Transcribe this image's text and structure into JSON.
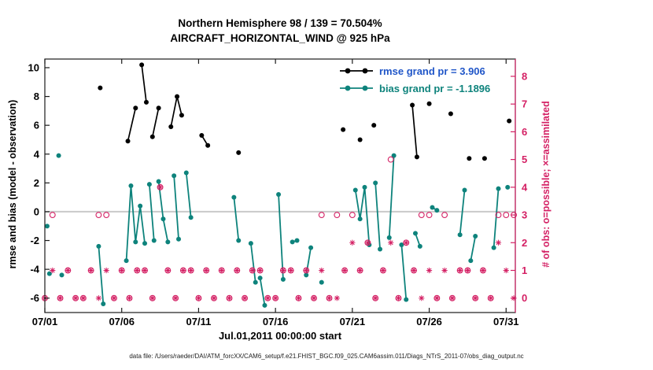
{
  "figure": {
    "title_line1": "Northern Hemisphere 98 / 139 = 70.504%",
    "title_line2": "AIRCRAFT_HORIZONTAL_WIND @ 925 hPa",
    "xlabel": "Jul.01,2011 00:00:00 start",
    "ylabel_left": "rmse and bias (model - observation)",
    "ylabel_right": "# of obs: o=possible; ×=assimilated",
    "caption": "data file: /Users/raeder/DAI/ATM_forcXX/CAM6_setup/f.e21.FHIST_BGC.f09_025.CAM6assim.011/Diags_NTrS_2011-07/obs_diag_output.nc"
  },
  "legend": {
    "rmse_label": "rmse grand pr = 3.906",
    "bias_label": "bias grand pr = -1.1896"
  },
  "colors": {
    "pink": "#d42064",
    "teal": "#0e837c",
    "black": "#000000",
    "legend_blue": "#2056c8",
    "zero_line": "#c9c9c9",
    "box": "#1a1a1a"
  },
  "chart_data": {
    "type": "line",
    "title": "Northern Hemisphere 98 / 139 = 70.504% | AIRCRAFT_HORIZONTAL_WIND @ 925 hPa",
    "rmse_grand_prior": 3.906,
    "bias_grand_prior": -1.1896,
    "x_domain": [
      0,
      30.6
    ],
    "x_ticks": [
      {
        "day": 0,
        "label": "07/01"
      },
      {
        "day": 5,
        "label": "07/06"
      },
      {
        "day": 10,
        "label": "07/11"
      },
      {
        "day": 15,
        "label": "07/16"
      },
      {
        "day": 20,
        "label": "07/21"
      },
      {
        "day": 25,
        "label": "07/26"
      },
      {
        "day": 30,
        "label": "07/31"
      }
    ],
    "ylim_left": [
      -7,
      10.6
    ],
    "yticks_left": [
      -6,
      -4,
      -2,
      0,
      2,
      4,
      6,
      8,
      10
    ],
    "right_axis": {
      "ticks": [
        0,
        1,
        2,
        3,
        4,
        5,
        6,
        7,
        8
      ],
      "zero_at_left": -6.0,
      "left_units_per_count": 1.925
    },
    "rmse_segments": [
      [
        [
          3.6,
          8.6
        ]
      ],
      [
        [
          5.4,
          4.9
        ],
        [
          5.9,
          7.2
        ]
      ],
      [
        [
          6.3,
          10.2
        ],
        [
          6.6,
          7.6
        ]
      ],
      [
        [
          7.0,
          5.2
        ],
        [
          7.4,
          7.2
        ]
      ],
      [
        [
          8.2,
          5.9
        ],
        [
          8.6,
          8.0
        ],
        [
          8.9,
          6.7
        ]
      ],
      [
        [
          10.2,
          5.3
        ],
        [
          10.6,
          4.6
        ]
      ],
      [
        [
          12.6,
          4.1
        ]
      ],
      [
        [
          19.4,
          5.7
        ]
      ],
      [
        [
          20.5,
          5.0
        ]
      ],
      [
        [
          21.4,
          6.0
        ]
      ],
      [
        [
          23.9,
          7.4
        ],
        [
          24.2,
          3.8
        ]
      ],
      [
        [
          25.0,
          7.5
        ]
      ],
      [
        [
          26.4,
          6.8
        ]
      ],
      [
        [
          27.6,
          3.7
        ]
      ],
      [
        [
          28.6,
          3.7
        ]
      ],
      [
        [
          30.2,
          6.3
        ]
      ]
    ],
    "bias_segments": [
      [
        [
          0.15,
          -1.0
        ]
      ],
      [
        [
          0.3,
          -4.3
        ]
      ],
      [
        [
          0.9,
          3.9
        ]
      ],
      [
        [
          1.1,
          -4.4
        ]
      ],
      [
        [
          3.5,
          -2.4
        ],
        [
          3.8,
          -6.4
        ]
      ],
      [
        [
          5.3,
          -3.4
        ],
        [
          5.6,
          1.8
        ],
        [
          5.9,
          -2.1
        ],
        [
          6.2,
          0.4
        ],
        [
          6.5,
          -2.2
        ]
      ],
      [
        [
          6.8,
          1.9
        ],
        [
          7.1,
          -2.0
        ]
      ],
      [
        [
          7.4,
          2.1
        ],
        [
          7.7,
          -0.5
        ],
        [
          8.0,
          -2.1
        ]
      ],
      [
        [
          8.4,
          2.5
        ],
        [
          8.7,
          -1.9
        ]
      ],
      [
        [
          9.2,
          2.7
        ],
        [
          9.5,
          -0.4
        ]
      ],
      [
        [
          12.3,
          1.0
        ],
        [
          12.6,
          -2.0
        ]
      ],
      [
        [
          13.4,
          -2.2
        ],
        [
          13.7,
          -4.9
        ]
      ],
      [
        [
          14.0,
          -4.6
        ],
        [
          14.3,
          -6.5
        ]
      ],
      [
        [
          15.2,
          1.2
        ],
        [
          15.5,
          -4.7
        ]
      ],
      [
        [
          16.1,
          -2.1
        ],
        [
          16.4,
          -2.0
        ]
      ],
      [
        [
          17.0,
          -4.4
        ],
        [
          17.3,
          -2.5
        ]
      ],
      [
        [
          18.0,
          -4.9
        ]
      ],
      [
        [
          20.2,
          1.5
        ],
        [
          20.5,
          -0.5
        ],
        [
          20.8,
          1.7
        ],
        [
          21.1,
          -2.3
        ]
      ],
      [
        [
          21.5,
          2.0
        ],
        [
          21.8,
          -2.6
        ]
      ],
      [
        [
          22.4,
          -1.8
        ],
        [
          22.7,
          3.9
        ]
      ],
      [
        [
          23.2,
          -2.3
        ],
        [
          23.5,
          -6.1
        ]
      ],
      [
        [
          24.1,
          -1.5
        ],
        [
          24.4,
          -2.4
        ]
      ],
      [
        [
          25.2,
          0.3
        ],
        [
          25.5,
          0.1
        ]
      ],
      [
        [
          27.0,
          -1.6
        ],
        [
          27.3,
          1.5
        ]
      ],
      [
        [
          27.7,
          -3.4
        ],
        [
          28.0,
          -1.7
        ]
      ],
      [
        [
          29.2,
          -2.5
        ],
        [
          29.5,
          1.6
        ]
      ],
      [
        [
          30.1,
          1.7
        ]
      ]
    ],
    "possible_counts": [
      [
        0,
        0
      ],
      [
        0.5,
        3
      ],
      [
        1,
        0
      ],
      [
        1.5,
        1
      ],
      [
        2,
        0
      ],
      [
        2.5,
        0
      ],
      [
        3,
        1
      ],
      [
        3.5,
        3
      ],
      [
        4,
        3
      ],
      [
        4.5,
        0
      ],
      [
        5,
        1
      ],
      [
        5.5,
        0
      ],
      [
        6,
        1
      ],
      [
        6.5,
        1
      ],
      [
        7,
        0
      ],
      [
        7.5,
        4
      ],
      [
        8,
        1
      ],
      [
        8.5,
        0
      ],
      [
        9,
        1
      ],
      [
        9.5,
        1
      ],
      [
        10,
        0
      ],
      [
        10.5,
        1
      ],
      [
        11,
        0
      ],
      [
        11.5,
        1
      ],
      [
        12,
        0
      ],
      [
        12.5,
        1
      ],
      [
        13,
        0
      ],
      [
        13.5,
        1
      ],
      [
        14,
        1
      ],
      [
        14.5,
        0
      ],
      [
        15,
        0
      ],
      [
        15.5,
        1
      ],
      [
        16,
        1
      ],
      [
        16.5,
        0
      ],
      [
        17,
        1
      ],
      [
        17.5,
        0
      ],
      [
        18,
        3
      ],
      [
        18.5,
        0
      ],
      [
        19,
        3
      ],
      [
        19.5,
        1
      ],
      [
        20,
        3
      ],
      [
        20.5,
        1
      ],
      [
        21,
        2
      ],
      [
        21.5,
        0
      ],
      [
        22,
        1
      ],
      [
        22.5,
        5
      ],
      [
        23,
        0
      ],
      [
        23.5,
        2
      ],
      [
        24,
        1
      ],
      [
        24.5,
        3
      ],
      [
        25,
        3
      ],
      [
        25.5,
        0
      ],
      [
        26,
        3
      ],
      [
        26.5,
        0
      ],
      [
        27,
        1
      ],
      [
        27.5,
        1
      ],
      [
        28,
        0
      ],
      [
        28.5,
        1
      ],
      [
        29,
        0
      ],
      [
        29.5,
        3
      ],
      [
        30,
        3
      ],
      [
        30.5,
        3
      ]
    ],
    "assimilated_counts": [
      [
        0,
        0
      ],
      [
        0.5,
        1
      ],
      [
        1,
        0
      ],
      [
        1.5,
        1
      ],
      [
        2,
        0
      ],
      [
        2.5,
        0
      ],
      [
        3,
        1
      ],
      [
        3.5,
        0
      ],
      [
        4,
        1
      ],
      [
        4.5,
        0
      ],
      [
        5,
        1
      ],
      [
        5.5,
        0
      ],
      [
        6,
        1
      ],
      [
        6.5,
        1
      ],
      [
        7,
        0
      ],
      [
        7.5,
        4
      ],
      [
        8,
        1
      ],
      [
        8.5,
        0
      ],
      [
        9,
        1
      ],
      [
        9.5,
        1
      ],
      [
        10,
        0
      ],
      [
        10.5,
        1
      ],
      [
        11,
        0
      ],
      [
        11.5,
        1
      ],
      [
        12,
        0
      ],
      [
        12.5,
        1
      ],
      [
        13,
        0
      ],
      [
        13.5,
        1
      ],
      [
        14,
        1
      ],
      [
        14.5,
        0
      ],
      [
        15,
        0
      ],
      [
        15.5,
        1
      ],
      [
        16,
        1
      ],
      [
        16.5,
        0
      ],
      [
        17,
        1
      ],
      [
        17.5,
        0
      ],
      [
        18,
        1
      ],
      [
        18.5,
        0
      ],
      [
        19,
        0
      ],
      [
        19.5,
        1
      ],
      [
        20,
        2
      ],
      [
        20.5,
        1
      ],
      [
        21,
        2
      ],
      [
        21.5,
        0
      ],
      [
        22,
        1
      ],
      [
        22.5,
        2
      ],
      [
        23,
        0
      ],
      [
        23.5,
        2
      ],
      [
        24,
        1
      ],
      [
        24.5,
        0
      ],
      [
        25,
        1
      ],
      [
        25.5,
        0
      ],
      [
        26,
        1
      ],
      [
        26.5,
        0
      ],
      [
        27,
        1
      ],
      [
        27.5,
        1
      ],
      [
        28,
        0
      ],
      [
        28.5,
        1
      ],
      [
        29,
        0
      ],
      [
        29.5,
        2
      ],
      [
        30,
        1
      ],
      [
        30.5,
        0
      ]
    ]
  }
}
